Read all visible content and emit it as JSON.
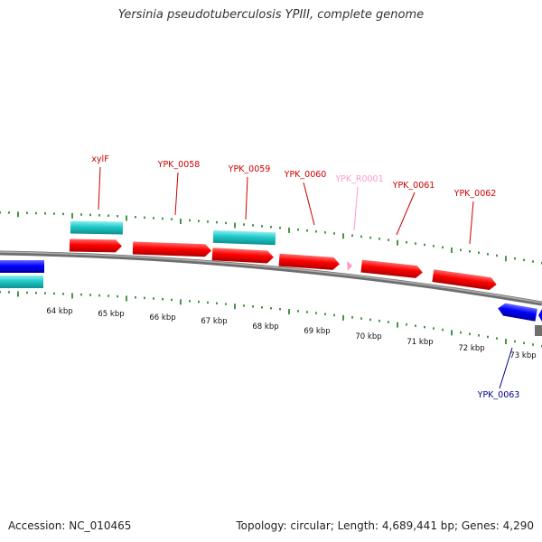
{
  "title": "Yersinia pseudotuberculosis YPIII, complete genome",
  "footer": {
    "accession": "Accession: NC_010465",
    "summary": "Topology: circular; Length: 4,689,441 bp; Genes: 4,290"
  },
  "colors": {
    "gene_forward": "#ff0000",
    "gene_reverse": "#0000ff",
    "cds_track": "#1ec8c8",
    "rna": "#ff99cc",
    "ticks": "#1a7a1a",
    "backbone": "#808080"
  },
  "scale_labels": [
    "64 kbp",
    "65 kbp",
    "66 kbp",
    "67 kbp",
    "68 kbp",
    "69 kbp",
    "70 kbp",
    "71 kbp",
    "72 kbp",
    "73 kbp"
  ],
  "gene_labels": [
    {
      "text": "xylF",
      "strand": "forward"
    },
    {
      "text": "YPK_0058",
      "strand": "forward"
    },
    {
      "text": "YPK_0059",
      "strand": "forward"
    },
    {
      "text": "YPK_0060",
      "strand": "forward"
    },
    {
      "text": "YPK_R0001",
      "strand": "rna"
    },
    {
      "text": "YPK_0061",
      "strand": "forward"
    },
    {
      "text": "YPK_0062",
      "strand": "forward"
    },
    {
      "text": "YPK_0063",
      "strand": "reverse"
    }
  ]
}
